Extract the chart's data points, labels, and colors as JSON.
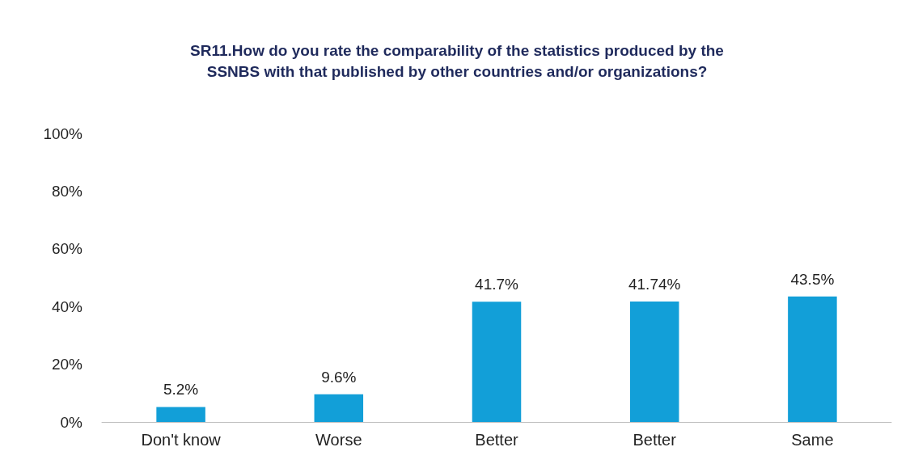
{
  "chart_data": {
    "type": "bar",
    "title": "SR11.How do you rate the comparability of the statistics produced by the\nSSNBS with that published by other countries and/or organizations?",
    "categories": [
      "Don't know",
      "Worse",
      "Better",
      "Better",
      "Same"
    ],
    "values": [
      5.2,
      9.6,
      41.7,
      41.74,
      43.5
    ],
    "value_labels": [
      "5.2%",
      "9.6%",
      "41.7%",
      "41.74%",
      "43.5%"
    ],
    "color": "#129fd8",
    "ylim": [
      0,
      100
    ],
    "yticks": [
      {
        "value": 0,
        "label": "0%"
      },
      {
        "value": 20,
        "label": "20%"
      },
      {
        "value": 40,
        "label": "40%"
      },
      {
        "value": 60,
        "label": "60%"
      },
      {
        "value": 80,
        "label": "80%"
      },
      {
        "value": 100,
        "label": "100%"
      }
    ],
    "grid": false
  }
}
